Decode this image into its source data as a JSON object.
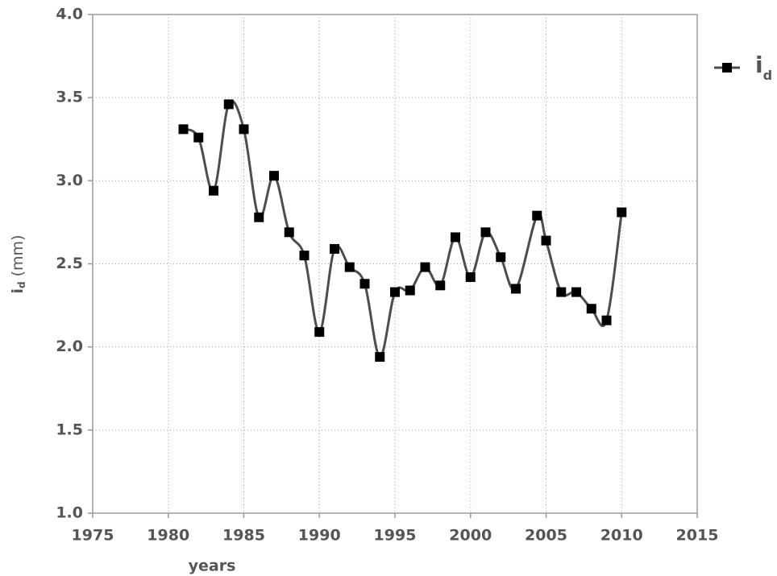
{
  "chart_data": {
    "type": "line",
    "xlabel": "years",
    "ylabel": [
      "i",
      "d",
      "(mm)"
    ],
    "x": [
      1981,
      1982,
      1983,
      1984,
      1985,
      1986,
      1987,
      1988,
      1989,
      1990,
      1991,
      1992,
      1993,
      1994,
      1995,
      1996,
      1997,
      1998,
      1999,
      2000,
      2001,
      2002,
      2003,
      2004.4,
      2005,
      2006,
      2007,
      2008,
      2009,
      2010
    ],
    "series": [
      {
        "name": "i",
        "name_subscript": "d",
        "color": "#4d4d4d",
        "marker_color": "#000000",
        "values": [
          3.31,
          3.26,
          2.94,
          3.46,
          3.31,
          2.78,
          3.03,
          2.69,
          2.55,
          2.09,
          2.59,
          2.48,
          2.38,
          1.94,
          2.33,
          2.34,
          2.48,
          2.37,
          2.66,
          2.42,
          2.69,
          2.54,
          2.35,
          2.79,
          2.64,
          2.33,
          2.33,
          2.23,
          2.16,
          2.81
        ]
      }
    ],
    "xlim": [
      1975,
      2015
    ],
    "xticks": [
      1975,
      1980,
      1985,
      1990,
      1995,
      2000,
      2005,
      2010,
      2015
    ],
    "ylim": [
      1,
      4
    ],
    "yticks": [
      {
        "value": 1,
        "label": "1.0"
      },
      1.5,
      {
        "value": 2,
        "label": "2.0"
      },
      2.5,
      {
        "value": 3,
        "label": "3.0"
      },
      3.5,
      {
        "value": 4,
        "label": "4.0"
      }
    ],
    "grid": true,
    "smooth": true
  }
}
